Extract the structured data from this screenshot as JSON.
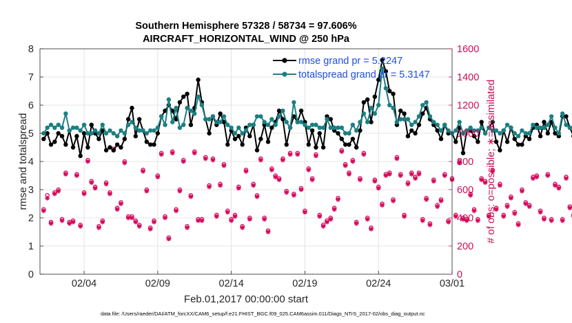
{
  "chart_data": {
    "type": "line",
    "title_line1": "Southern Hemisphere 57328 / 58734 = 97.606%",
    "title_line2": "AIRCRAFT_HORIZONTAL_WIND @ 250 hPa",
    "ylabel": "rmse and totalspread",
    "y2label": "# of obs: o=possible; ∗=assimilated",
    "xlabel": "Feb.01,2017 00:00:00 start",
    "footer": "data file: /Users/raeder/DAI/ATM_forcXX/CAM6_setup/f.e21.FHIST_BGC.f09_025.CAM6assim.011/Diags_NTrS_2017-02/obs_diag_output.nc",
    "xlim": [
      0.5,
      28.5
    ],
    "ylim": [
      0,
      8
    ],
    "y2lim": [
      0,
      1600
    ],
    "xticks": [
      {
        "v": 3.5,
        "label": "02/04"
      },
      {
        "v": 8.5,
        "label": "02/09"
      },
      {
        "v": 13.5,
        "label": "02/14"
      },
      {
        "v": 18.5,
        "label": "02/19"
      },
      {
        "v": 23.5,
        "label": "02/24"
      },
      {
        "v": 28.5,
        "label": "03/01"
      }
    ],
    "yticks": [
      "0",
      "1",
      "2",
      "3",
      "4",
      "5",
      "6",
      "7",
      "8"
    ],
    "y2ticks": [
      "0",
      "200",
      "400",
      "600",
      "800",
      "1000",
      "1200",
      "1400",
      "1600"
    ],
    "x_start": 0.75,
    "x_step": 0.25,
    "series": [
      {
        "name": "rmse",
        "legend": "rmse grand pr = 5.2247",
        "color": "#000000",
        "marker": "dot",
        "values": [
          4.8,
          5.0,
          4.6,
          4.7,
          5.0,
          4.9,
          4.6,
          5.1,
          4.5,
          4.9,
          4.2,
          5.0,
          4.5,
          5.3,
          5.0,
          4.8,
          5.1,
          4.4,
          4.5,
          4.4,
          4.6,
          4.5,
          4.8,
          5.5,
          5.9,
          4.9,
          5.5,
          5.1,
          4.7,
          4.6,
          4.6,
          5.0,
          5.6,
          5.8,
          6.0,
          5.8,
          5.5,
          6.1,
          6.3,
          6.4,
          5.3,
          5.9,
          6.9,
          6.1,
          5.5,
          5.0,
          5.6,
          5.3,
          5.7,
          5.4,
          4.6,
          5.1,
          4.8,
          4.9,
          4.6,
          5.2,
          4.9,
          5.3,
          4.4,
          4.8,
          5.3,
          4.7,
          5.2,
          5.4,
          5.8,
          5.5,
          4.6,
          5.2,
          5.6,
          5.4,
          5.8,
          5.4,
          4.6,
          5.1,
          4.5,
          5.0,
          4.5,
          5.6,
          5.5,
          5.1,
          5.0,
          4.8,
          4.6,
          4.6,
          4.8,
          4.5,
          5.1,
          6.1,
          6.2,
          5.4,
          6.3,
          6.9,
          7.6,
          7.2,
          6.5,
          6.4,
          5.3,
          5.8,
          5.7,
          4.9,
          5.1,
          5.0,
          5.3,
          5.7,
          5.9,
          5.5,
          5.3,
          5.1,
          4.8,
          5.3,
          5.0,
          5.0,
          4.7,
          5.2,
          4.3,
          5.1,
          5.1,
          4.9,
          4.7,
          5.4,
          5.0,
          5.2,
          5.4,
          4.7,
          4.4,
          5.1,
          4.7,
          5.2,
          4.8,
          4.6,
          4.6,
          4.9,
          4.8,
          5.2,
          5.3,
          4.9,
          5.4,
          5.0,
          5.4,
          5.0,
          4.9,
          5.6,
          5.6,
          5.2,
          4.9
        ]
      },
      {
        "name": "totalspread",
        "legend": "totalspread grand pr = 5.3147",
        "color": "#1b7f82",
        "marker": "dot",
        "values": [
          5.0,
          5.2,
          5.3,
          5.2,
          5.3,
          5.2,
          5.7,
          5.1,
          5.2,
          5.2,
          5.1,
          5.3,
          5.0,
          5.0,
          5.1,
          5.0,
          5.3,
          5.0,
          5.1,
          5.0,
          4.9,
          5.1,
          5.0,
          5.3,
          5.4,
          5.2,
          5.1,
          5.1,
          5.0,
          5.1,
          5.1,
          5.2,
          5.6,
          5.3,
          6.2,
          5.4,
          5.9,
          5.2,
          5.3,
          5.9,
          5.8,
          5.7,
          6.3,
          6.0,
          5.5,
          5.5,
          5.6,
          5.4,
          5.4,
          5.6,
          5.3,
          5.2,
          5.0,
          5.2,
          5.0,
          5.1,
          5.3,
          5.3,
          5.6,
          5.6,
          5.4,
          5.3,
          5.5,
          5.3,
          5.6,
          5.8,
          5.4,
          5.2,
          6.1,
          5.4,
          5.4,
          5.3,
          5.2,
          5.3,
          5.3,
          5.2,
          5.2,
          5.5,
          5.2,
          5.2,
          5.2,
          5.2,
          5.0,
          5.0,
          5.3,
          5.1,
          5.4,
          5.7,
          5.4,
          5.9,
          5.7,
          6.0,
          7.3,
          6.6,
          6.0,
          5.9,
          5.4,
          5.5,
          5.5,
          5.5,
          5.3,
          5.4,
          5.6,
          6.0,
          6.1,
          5.6,
          5.4,
          5.3,
          5.1,
          5.3,
          5.1,
          5.0,
          5.1,
          5.4,
          5.0,
          5.1,
          5.2,
          5.1,
          5.1,
          5.2,
          5.0,
          5.2,
          5.1,
          5.1,
          5.0,
          5.1,
          5.3,
          5.2,
          5.0,
          4.9,
          5.1,
          5.0,
          5.0,
          5.3,
          5.2,
          5.2,
          5.2,
          5.3,
          5.6,
          5.2,
          5.0,
          5.7,
          5.3,
          5.2,
          5.2
        ]
      },
      {
        "name": "nposs",
        "color": "#d6085a",
        "marker": "circle",
        "values": [
          460,
          560,
          370,
          580,
          600,
          390,
          720,
          370,
          380,
          710,
          350,
          580,
          810,
          660,
          620,
          340,
          380,
          650,
          580,
          890,
          470,
          510,
          800,
          410,
          410,
          380,
          350,
          740,
          600,
          330,
          380,
          700,
          860,
          410,
          260,
          870,
          460,
          600,
          810,
          340,
          560,
          870,
          390,
          390,
          830,
          630,
          820,
          420,
          640,
          780,
          450,
          390,
          420,
          620,
          340,
          740,
          400,
          640,
          560,
          820,
          400,
          310,
          750,
          700,
          680,
          820,
          590,
          860,
          570,
          860,
          610,
          450,
          750,
          680,
          850,
          420,
          350,
          380,
          400,
          470,
          540,
          880,
          780,
          720,
          810,
          370,
          680,
          860,
          400,
          330,
          670,
          620,
          500,
          710,
          720,
          530,
          830,
          710,
          420,
          650,
          720,
          690,
          720,
          390,
          540,
          360,
          670,
          490,
          530,
          710,
          380,
          680,
          420,
          800,
          400,
          390,
          570,
          460,
          390,
          680,
          660,
          420,
          740,
          470,
          640,
          420,
          490,
          550,
          440,
          360,
          600,
          510,
          490,
          690,
          700,
          450,
          400,
          710,
          390,
          640,
          620,
          390,
          690,
          480,
          420
        ]
      },
      {
        "name": "nused",
        "color": "#d6085a",
        "marker": "star",
        "values": [
          450,
          540,
          360,
          570,
          590,
          380,
          710,
          360,
          370,
          700,
          340,
          570,
          800,
          650,
          610,
          330,
          370,
          640,
          570,
          880,
          460,
          500,
          790,
          400,
          400,
          370,
          340,
          730,
          590,
          320,
          370,
          690,
          850,
          400,
          250,
          860,
          450,
          590,
          800,
          330,
          550,
          860,
          380,
          380,
          820,
          620,
          810,
          410,
          630,
          770,
          440,
          380,
          410,
          610,
          330,
          730,
          390,
          630,
          550,
          810,
          390,
          300,
          740,
          690,
          670,
          810,
          580,
          850,
          560,
          850,
          600,
          440,
          740,
          670,
          840,
          410,
          340,
          370,
          390,
          460,
          530,
          870,
          770,
          710,
          800,
          360,
          670,
          850,
          390,
          320,
          660,
          610,
          490,
          700,
          710,
          520,
          820,
          700,
          410,
          640,
          710,
          680,
          710,
          380,
          530,
          350,
          660,
          480,
          520,
          700,
          370,
          670,
          410,
          790,
          390,
          380,
          560,
          450,
          380,
          670,
          650,
          410,
          730,
          460,
          630,
          410,
          480,
          540,
          430,
          350,
          590,
          500,
          480,
          680,
          690,
          440,
          390,
          700,
          380,
          630,
          610,
          380,
          680,
          470,
          410
        ]
      }
    ]
  }
}
